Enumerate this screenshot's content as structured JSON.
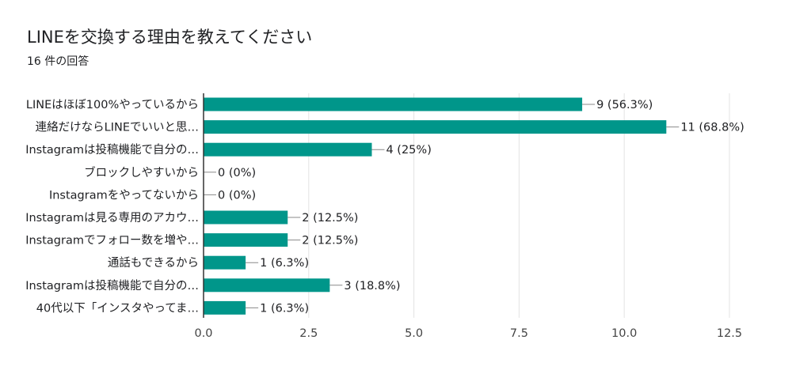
{
  "form": {
    "title": "LINEを交換する理由を教えてください",
    "response_count": "16 件の回答"
  },
  "colors": {
    "bar": "#00968a",
    "grid": "#e3e3e3",
    "axis": "#333333",
    "leader": "#888888"
  },
  "chart_data": {
    "type": "bar",
    "orientation": "horizontal",
    "title": "LINEを交換する理由を教えてください",
    "categories": [
      "LINEはほぼ100%やっているから",
      "連絡だけならLINEでいいと思…",
      "Instagramは投稿機能で自分の…",
      "ブロックしやすいから",
      "Instagramをやってないから",
      "Instagramは見る専用のアカウ…",
      "Instagramでフォロー数を増や…",
      "通話もできるから",
      "Instagramは投稿機能で自分の…",
      "40代以下「インスタやってま…"
    ],
    "values": [
      9,
      11,
      4,
      0,
      0,
      2,
      2,
      1,
      3,
      1
    ],
    "data_labels": [
      "9 (56.3%)",
      "11 (68.8%)",
      "4 (25%)",
      "0 (0%)",
      "0 (0%)",
      "2 (12.5%)",
      "2 (12.5%)",
      "1 (6.3%)",
      "3 (18.8%)",
      "1 (6.3%)"
    ],
    "xlim": [
      0,
      12.5
    ],
    "xticks": [
      0,
      2.5,
      5,
      7.5,
      10,
      12.5
    ],
    "xtick_labels": [
      "0.0",
      "2.5",
      "5.0",
      "7.5",
      "10.0",
      "12.5"
    ],
    "grid": "vertical",
    "legend": "none"
  }
}
